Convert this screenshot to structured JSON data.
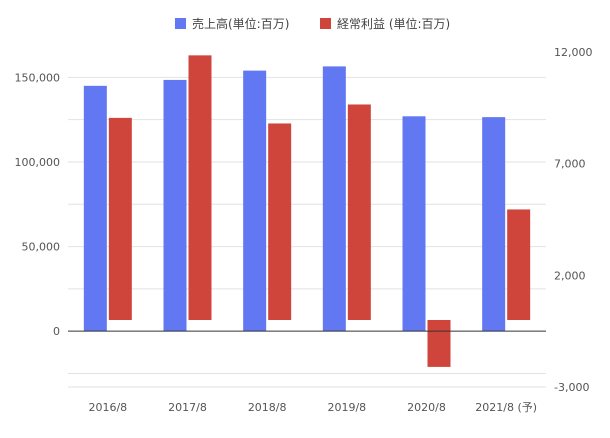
{
  "chart_data": {
    "type": "bar",
    "categories": [
      "2016/8",
      "2017/8",
      "2018/8",
      "2019/8",
      "2020/8",
      "2021/8 (予)"
    ],
    "series": [
      {
        "name": "売上高(単位:百万)",
        "axis": "left",
        "color": "#6178f2",
        "values": [
          145000,
          148500,
          154000,
          156500,
          127000,
          126500
        ]
      },
      {
        "name": "経常利益 (単位:百万)",
        "axis": "right",
        "color": "#d0453b",
        "values": [
          9050,
          11850,
          8800,
          9650,
          -2100,
          4950
        ]
      }
    ],
    "left_axis": {
      "min": -33000,
      "max": 165000,
      "ticks": [
        0,
        50000,
        100000,
        150000
      ],
      "tick_labels": [
        "0",
        "50,000",
        "100,000",
        "150,000"
      ]
    },
    "right_axis": {
      "min": -3000,
      "max": 12000,
      "ticks": [
        -3000,
        2000,
        7000,
        12000
      ],
      "tick_labels": [
        "-3,000",
        "2,000",
        "7,000",
        "12,000"
      ]
    },
    "legend_position": "top-center",
    "grid": true
  }
}
